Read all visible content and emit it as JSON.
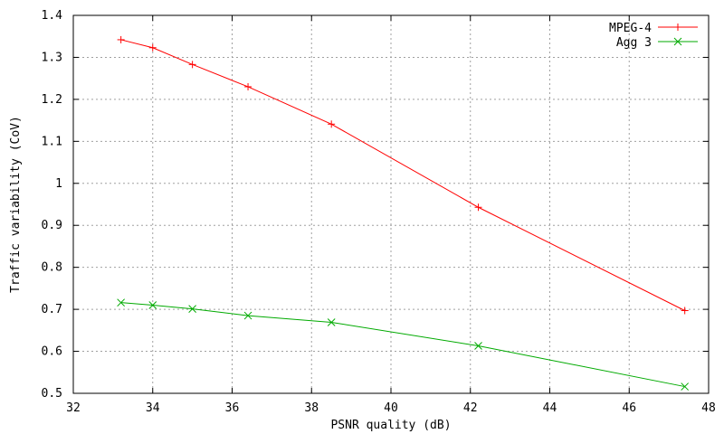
{
  "chart_data": {
    "type": "line",
    "title": "",
    "xlabel": "PSNR quality (dB)",
    "ylabel": "Traffic variability (CoV)",
    "xlim": [
      32,
      48
    ],
    "ylim": [
      0.5,
      1.4
    ],
    "xticks": [
      32,
      34,
      36,
      38,
      40,
      42,
      44,
      46,
      48
    ],
    "yticks": [
      0.5,
      0.6,
      0.7,
      0.8,
      0.9,
      1.0,
      1.1,
      1.2,
      1.3,
      1.4
    ],
    "xtick_labels": [
      "32",
      "34",
      "36",
      "38",
      "40",
      "42",
      "44",
      "46",
      "48"
    ],
    "ytick_labels": [
      "0.5",
      "0.6",
      "0.7",
      "0.8",
      "0.9",
      "1",
      "1.1",
      "1.2",
      "1.3",
      "1.4"
    ],
    "grid": true,
    "legend": "top-right",
    "series": [
      {
        "name": "MPEG-4",
        "color": "#ff0000",
        "marker": "plus",
        "x": [
          33.2,
          34.0,
          35.0,
          36.4,
          38.5,
          42.2,
          47.4
        ],
        "y": [
          1.342,
          1.323,
          1.283,
          1.23,
          1.141,
          0.943,
          0.697
        ]
      },
      {
        "name": "Agg 3",
        "color": "#00aa00",
        "marker": "cross",
        "x": [
          33.2,
          34.0,
          35.0,
          36.4,
          38.5,
          42.2,
          47.4
        ],
        "y": [
          0.716,
          0.71,
          0.701,
          0.685,
          0.669,
          0.613,
          0.516
        ]
      }
    ]
  }
}
